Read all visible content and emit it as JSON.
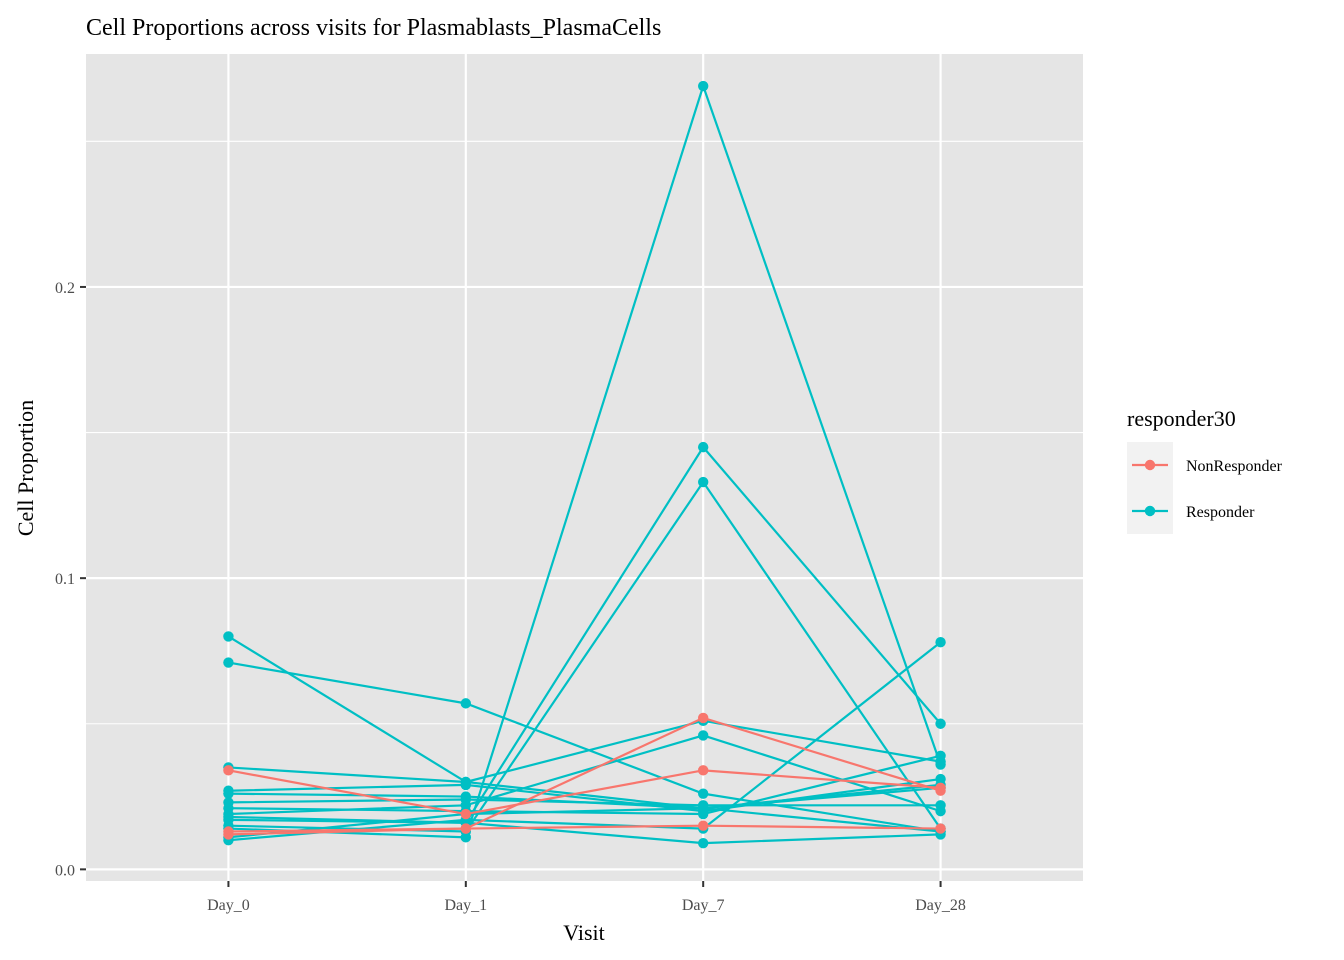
{
  "chart_data": {
    "type": "line",
    "title": "Cell Proportions across visits for Plasmablasts_PlasmaCells",
    "xlabel": "Visit",
    "ylabel": "Cell Proportion",
    "categories": [
      "Day_0",
      "Day_1",
      "Day_7",
      "Day_28"
    ],
    "ylim": [
      -0.004,
      0.28
    ],
    "yticks": [
      0.0,
      0.1,
      0.2
    ],
    "ytick_labels": [
      "0.0",
      "0.1",
      "0.2"
    ],
    "grid": true,
    "legend": {
      "title": "responder30",
      "position": "right",
      "entries": [
        {
          "label": "NonResponder",
          "color": "#F8766D"
        },
        {
          "label": "Responder",
          "color": "#00BFC4"
        }
      ]
    },
    "colors": {
      "NonResponder": "#F8766D",
      "Responder": "#00BFC4",
      "panel_background": "#E5E5E5",
      "grid": "#FFFFFF",
      "tick_text": "#4D4D4D"
    },
    "series": [
      {
        "group": "Responder",
        "values": [
          0.08,
          0.03,
          0.021,
          0.013
        ]
      },
      {
        "group": "Responder",
        "values": [
          0.071,
          0.057,
          0.026,
          0.013
        ]
      },
      {
        "group": "Responder",
        "values": [
          0.035,
          0.03,
          0.051,
          0.037
        ]
      },
      {
        "group": "Responder",
        "values": [
          0.027,
          0.029,
          0.02,
          0.031
        ]
      },
      {
        "group": "Responder",
        "values": [
          0.026,
          0.025,
          0.021,
          0.028
        ]
      },
      {
        "group": "Responder",
        "values": [
          0.023,
          0.024,
          0.022,
          0.022
        ]
      },
      {
        "group": "Responder",
        "values": [
          0.021,
          0.02,
          0.019,
          0.039
        ]
      },
      {
        "group": "Responder",
        "values": [
          0.019,
          0.022,
          0.046,
          0.02
        ]
      },
      {
        "group": "Responder",
        "values": [
          0.017,
          0.016,
          0.145,
          0.05
        ]
      },
      {
        "group": "Responder",
        "values": [
          0.015,
          0.013,
          0.133,
          0.014
        ]
      },
      {
        "group": "Responder",
        "values": [
          0.014,
          0.011,
          0.269,
          0.036
        ]
      },
      {
        "group": "Responder",
        "values": [
          0.011,
          0.019,
          0.021,
          0.029
        ]
      },
      {
        "group": "Responder",
        "values": [
          0.01,
          0.017,
          0.014,
          0.078
        ]
      },
      {
        "group": "Responder",
        "values": [
          0.018,
          0.016,
          0.009,
          0.012
        ]
      },
      {
        "group": "NonResponder",
        "values": [
          0.034,
          0.019,
          0.034,
          0.028
        ]
      },
      {
        "group": "NonResponder",
        "values": [
          0.013,
          0.014,
          0.015,
          0.014
        ]
      },
      {
        "group": "NonResponder",
        "values": [
          0.012,
          0.014,
          0.052,
          0.027
        ]
      }
    ]
  }
}
